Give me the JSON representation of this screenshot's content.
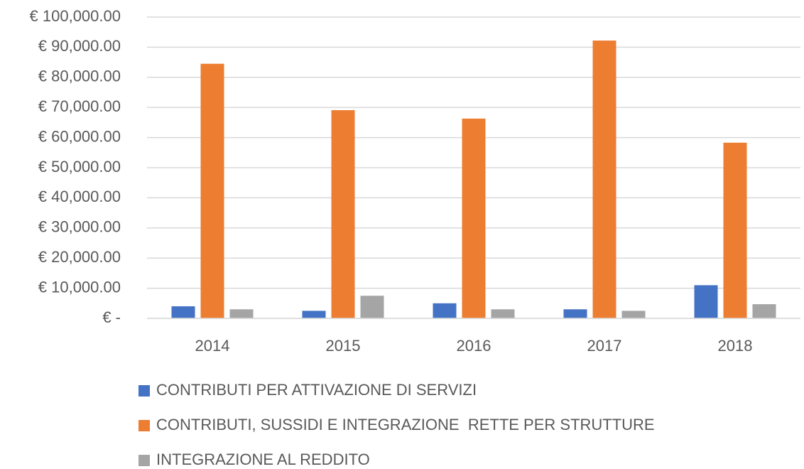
{
  "chart_data": {
    "type": "bar",
    "categories": [
      "2014",
      "2015",
      "2016",
      "2017",
      "2018"
    ],
    "series": [
      {
        "name": "CONTRIBUTI PER ATTIVAZIONE DI SERVIZI",
        "color": "#4472c4",
        "values": [
          4000,
          2500,
          5000,
          3000,
          11000
        ]
      },
      {
        "name": "CONTRIBUTI, SUSSIDI E INTEGRAZIONE  RETTE PER STRUTTURE",
        "color": "#ed7d31",
        "values": [
          84500,
          69100,
          66300,
          92200,
          58300
        ]
      },
      {
        "name": "INTEGRAZIONE AL REDDITO",
        "color": "#a5a5a5",
        "values": [
          3000,
          7500,
          3000,
          2500,
          4700
        ]
      }
    ],
    "ylim": [
      0,
      100000
    ],
    "yticks": [
      {
        "value": 0,
        "label": "€ -"
      },
      {
        "value": 10000,
        "label": "€ 10,000.00"
      },
      {
        "value": 20000,
        "label": "€ 20,000.00"
      },
      {
        "value": 30000,
        "label": "€ 30,000.00"
      },
      {
        "value": 40000,
        "label": "€ 40,000.00"
      },
      {
        "value": 50000,
        "label": "€ 50,000.00"
      },
      {
        "value": 60000,
        "label": "€ 60,000.00"
      },
      {
        "value": 70000,
        "label": "€ 70,000.00"
      },
      {
        "value": 80000,
        "label": "€ 80,000.00"
      },
      {
        "value": 90000,
        "label": "€ 90,000.00"
      },
      {
        "value": 100000,
        "label": "€ 100,000.00"
      }
    ],
    "grid": true,
    "legend": "bottom"
  }
}
